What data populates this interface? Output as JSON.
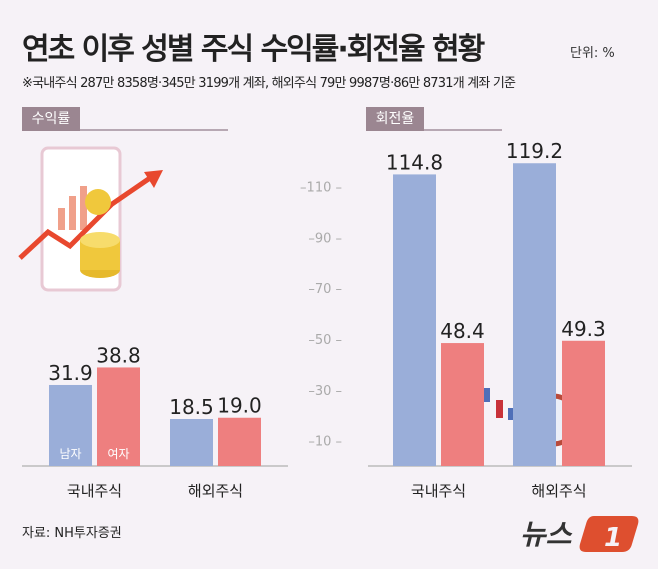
{
  "title": "연초 이후 성별 주식 수익률·회전율 현황",
  "unit": "단위: %",
  "note": "※국내주식 287만 8358명·345만 3199개 계좌, 해외주식 79만 9987명·86만 8731개 계좌 기준",
  "source": "자료: NH투자증권",
  "logo": "뉴스1",
  "colors": {
    "male": "#9aaed9",
    "female": "#ee7f7f",
    "background": "#f6f2f7",
    "section_tab": "#9b8691"
  },
  "chart_data": [
    {
      "type": "bar",
      "title": "수익률",
      "categories": [
        "국내주식",
        "해외주식"
      ],
      "series": [
        {
          "name": "남자",
          "values": [
            31.9,
            18.5
          ]
        },
        {
          "name": "여자",
          "values": [
            38.8,
            19.0
          ]
        }
      ],
      "value_labels": [
        [
          "31.9",
          "18.5"
        ],
        [
          "38.8",
          "19.0"
        ]
      ],
      "ylim": [
        0,
        130
      ]
    },
    {
      "type": "bar",
      "title": "회전율",
      "categories": [
        "국내주식",
        "해외주식"
      ],
      "series": [
        {
          "values": [
            114.8,
            119.2
          ]
        },
        {
          "values": [
            48.4,
            49.3
          ]
        }
      ],
      "value_labels": [
        [
          "114.8",
          "119.2"
        ],
        [
          "48.4",
          "49.3"
        ]
      ],
      "yticks": [
        10,
        30,
        50,
        70,
        90,
        110
      ],
      "ytick_labels": [
        "10",
        "30",
        "50",
        "70",
        "90",
        "110"
      ],
      "ylim": [
        0,
        130
      ]
    }
  ]
}
